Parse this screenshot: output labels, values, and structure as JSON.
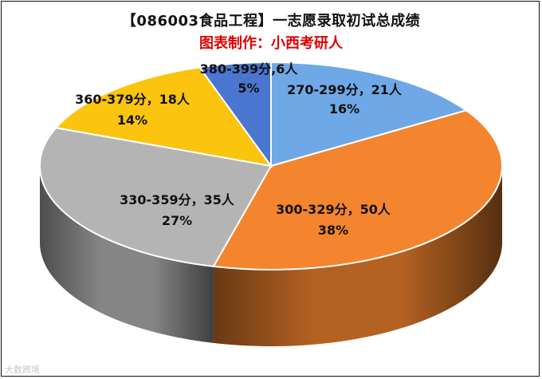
{
  "chart_data": {
    "type": "pie",
    "title": "【086003食品工程】一志愿录取初试总成绩",
    "subtitle": "图表制作：小西考研人",
    "slices": [
      {
        "label": "270-299分，21人",
        "category": "270-299分",
        "count": 21,
        "percent_label": "16%",
        "value": 16,
        "color": "#6fa8e6"
      },
      {
        "label": "300-329分，50人",
        "category": "300-329分",
        "count": 50,
        "percent_label": "38%",
        "value": 38,
        "color": "#f4842e"
      },
      {
        "label": "330-359分，35人",
        "category": "330-359分",
        "count": 35,
        "percent_label": "27%",
        "value": 27,
        "color": "#b4b4b4"
      },
      {
        "label": "360-379分，18人",
        "category": "360-379分",
        "count": 18,
        "percent_label": "14%",
        "value": 14,
        "color": "#fbc40f"
      },
      {
        "label": "380-399分,6人",
        "category": "380-399分",
        "count": 6,
        "percent_label": "5%",
        "value": 5,
        "color": "#4a76cf"
      }
    ]
  },
  "watermark": "大数跨境"
}
